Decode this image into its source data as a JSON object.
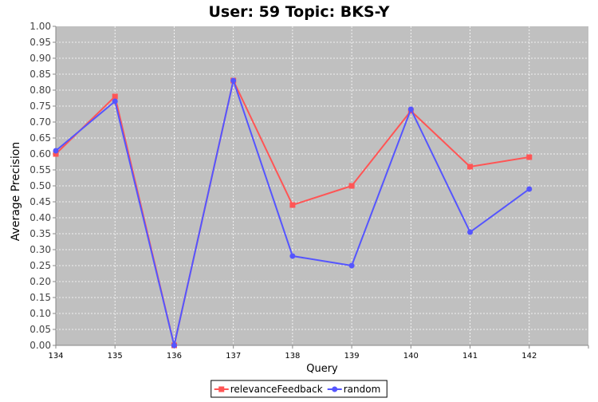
{
  "chart_data": {
    "type": "line",
    "title": "User: 59 Topic: BKS-Y",
    "xlabel": "Query",
    "ylabel": "Average Precision",
    "x": [
      134,
      135,
      136,
      137,
      138,
      139,
      140,
      141,
      142
    ],
    "xlim": [
      134,
      143
    ],
    "ylim": [
      0,
      1
    ],
    "x_ticks": [
      "134",
      "135",
      "136",
      "137",
      "138",
      "139",
      "140",
      "141",
      "142"
    ],
    "y_ticks": [
      "0.00",
      "0.05",
      "0.10",
      "0.15",
      "0.20",
      "0.25",
      "0.30",
      "0.35",
      "0.40",
      "0.45",
      "0.50",
      "0.55",
      "0.60",
      "0.65",
      "0.70",
      "0.75",
      "0.80",
      "0.85",
      "0.90",
      "0.95",
      "1.00"
    ],
    "grid": true,
    "legend_position": "bottom-center",
    "plot_background": "#c0c0c0",
    "series": [
      {
        "name": "relevanceFeedback",
        "color": "#ff5555",
        "marker": "square",
        "values": [
          0.6,
          0.78,
          0.0,
          0.83,
          0.44,
          0.5,
          0.735,
          0.56,
          0.59
        ]
      },
      {
        "name": "random",
        "color": "#5555ff",
        "marker": "circle",
        "values": [
          0.61,
          0.765,
          0.0,
          0.83,
          0.28,
          0.25,
          0.74,
          0.355,
          0.49
        ]
      }
    ]
  }
}
